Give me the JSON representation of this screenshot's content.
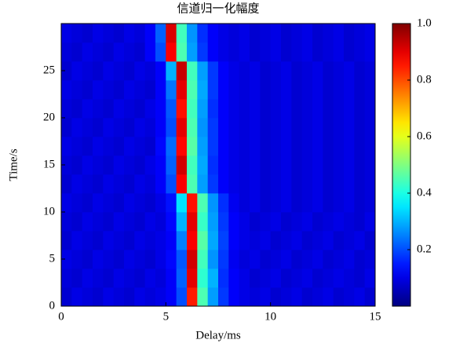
{
  "chart_data": {
    "type": "heatmap",
    "title": "信道归一化幅度",
    "xlabel": "Delay/ms",
    "ylabel": "Time/s",
    "xlim": [
      0,
      15
    ],
    "ylim": [
      0,
      30
    ],
    "xticks": [
      0,
      5,
      10,
      15
    ],
    "yticks": [
      0,
      5,
      10,
      15,
      20,
      25
    ],
    "clim": [
      0,
      1
    ],
    "cticks": [
      0.2,
      0.4,
      0.6,
      0.8,
      {
        "value": 1,
        "label": "1.0"
      }
    ],
    "colormap": "jet",
    "x": [
      0.25,
      0.75,
      1.25,
      1.75,
      2.25,
      2.75,
      3.25,
      3.75,
      4.25,
      4.75,
      5.25,
      5.75,
      6.25,
      6.75,
      7.25,
      7.75,
      8.25,
      8.75,
      9.25,
      9.75,
      10.25,
      10.75,
      11.25,
      11.75,
      12.25,
      12.75,
      13.25,
      13.75,
      14.25,
      14.75
    ],
    "y": [
      1,
      3,
      5,
      7,
      9,
      11,
      13,
      15,
      17,
      19,
      21,
      23,
      25,
      27,
      29
    ],
    "z": [
      [
        0.08,
        0.1,
        0.09,
        0.08,
        0.1,
        0.09,
        0.08,
        0.1,
        0.09,
        0.1,
        0.12,
        0.2,
        0.85,
        0.45,
        0.28,
        0.18,
        0.12,
        0.1,
        0.09,
        0.1,
        0.08,
        0.09,
        0.1,
        0.08,
        0.09,
        0.1,
        0.08,
        0.09,
        0.1,
        0.08
      ],
      [
        0.09,
        0.08,
        0.1,
        0.09,
        0.08,
        0.1,
        0.09,
        0.08,
        0.1,
        0.09,
        0.12,
        0.22,
        0.9,
        0.42,
        0.3,
        0.17,
        0.12,
        0.1,
        0.08,
        0.09,
        0.1,
        0.08,
        0.09,
        0.1,
        0.08,
        0.09,
        0.1,
        0.09,
        0.08,
        0.1
      ],
      [
        0.1,
        0.09,
        0.08,
        0.1,
        0.09,
        0.08,
        0.1,
        0.09,
        0.08,
        0.1,
        0.13,
        0.21,
        0.92,
        0.44,
        0.27,
        0.18,
        0.11,
        0.09,
        0.1,
        0.08,
        0.09,
        0.1,
        0.08,
        0.09,
        0.1,
        0.08,
        0.09,
        0.1,
        0.08,
        0.09
      ],
      [
        0.08,
        0.1,
        0.09,
        0.08,
        0.1,
        0.09,
        0.08,
        0.1,
        0.09,
        0.1,
        0.12,
        0.25,
        0.88,
        0.46,
        0.29,
        0.19,
        0.12,
        0.1,
        0.09,
        0.1,
        0.08,
        0.09,
        0.1,
        0.08,
        0.09,
        0.1,
        0.08,
        0.09,
        0.1,
        0.08
      ],
      [
        0.09,
        0.08,
        0.1,
        0.09,
        0.08,
        0.1,
        0.09,
        0.08,
        0.1,
        0.09,
        0.13,
        0.3,
        0.9,
        0.43,
        0.28,
        0.18,
        0.12,
        0.1,
        0.08,
        0.09,
        0.1,
        0.08,
        0.09,
        0.1,
        0.08,
        0.09,
        0.1,
        0.09,
        0.08,
        0.1
      ],
      [
        0.1,
        0.09,
        0.08,
        0.1,
        0.09,
        0.08,
        0.1,
        0.09,
        0.08,
        0.1,
        0.14,
        0.35,
        0.86,
        0.45,
        0.27,
        0.17,
        0.11,
        0.09,
        0.1,
        0.08,
        0.09,
        0.1,
        0.08,
        0.09,
        0.1,
        0.08,
        0.09,
        0.1,
        0.08,
        0.09
      ],
      [
        0.08,
        0.1,
        0.09,
        0.08,
        0.1,
        0.09,
        0.08,
        0.1,
        0.09,
        0.12,
        0.2,
        0.88,
        0.45,
        0.28,
        0.18,
        0.12,
        0.1,
        0.09,
        0.1,
        0.08,
        0.09,
        0.1,
        0.08,
        0.09,
        0.1,
        0.08,
        0.09,
        0.1,
        0.08,
        0.09
      ],
      [
        0.09,
        0.08,
        0.1,
        0.09,
        0.08,
        0.1,
        0.09,
        0.08,
        0.1,
        0.12,
        0.22,
        0.92,
        0.44,
        0.29,
        0.17,
        0.12,
        0.1,
        0.09,
        0.1,
        0.08,
        0.09,
        0.1,
        0.08,
        0.09,
        0.1,
        0.08,
        0.09,
        0.1,
        0.08,
        0.09
      ],
      [
        0.1,
        0.09,
        0.08,
        0.1,
        0.09,
        0.08,
        0.1,
        0.09,
        0.08,
        0.13,
        0.23,
        0.87,
        0.46,
        0.28,
        0.18,
        0.12,
        0.1,
        0.09,
        0.1,
        0.08,
        0.09,
        0.1,
        0.08,
        0.09,
        0.1,
        0.08,
        0.09,
        0.1,
        0.08,
        0.09
      ],
      [
        0.08,
        0.1,
        0.09,
        0.08,
        0.1,
        0.09,
        0.08,
        0.1,
        0.09,
        0.12,
        0.2,
        0.9,
        0.45,
        0.27,
        0.18,
        0.12,
        0.1,
        0.09,
        0.1,
        0.08,
        0.09,
        0.1,
        0.08,
        0.09,
        0.1,
        0.08,
        0.09,
        0.1,
        0.08,
        0.09
      ],
      [
        0.09,
        0.08,
        0.1,
        0.09,
        0.08,
        0.1,
        0.09,
        0.08,
        0.1,
        0.12,
        0.21,
        0.86,
        0.44,
        0.28,
        0.17,
        0.12,
        0.1,
        0.09,
        0.1,
        0.08,
        0.09,
        0.1,
        0.08,
        0.09,
        0.1,
        0.08,
        0.09,
        0.1,
        0.08,
        0.09
      ],
      [
        0.1,
        0.09,
        0.08,
        0.1,
        0.09,
        0.08,
        0.1,
        0.09,
        0.08,
        0.12,
        0.24,
        0.9,
        0.45,
        0.29,
        0.18,
        0.12,
        0.1,
        0.09,
        0.1,
        0.08,
        0.09,
        0.1,
        0.08,
        0.09,
        0.1,
        0.08,
        0.09,
        0.1,
        0.08,
        0.09
      ],
      [
        0.08,
        0.1,
        0.09,
        0.08,
        0.1,
        0.09,
        0.08,
        0.1,
        0.09,
        0.12,
        0.3,
        0.93,
        0.44,
        0.28,
        0.18,
        0.12,
        0.1,
        0.09,
        0.1,
        0.08,
        0.09,
        0.1,
        0.08,
        0.09,
        0.1,
        0.08,
        0.09,
        0.1,
        0.08,
        0.09
      ],
      [
        0.09,
        0.08,
        0.1,
        0.09,
        0.08,
        0.1,
        0.09,
        0.08,
        0.12,
        0.2,
        0.88,
        0.45,
        0.28,
        0.18,
        0.12,
        0.1,
        0.09,
        0.1,
        0.08,
        0.09,
        0.1,
        0.08,
        0.09,
        0.1,
        0.08,
        0.09,
        0.1,
        0.08,
        0.09,
        0.1
      ],
      [
        0.1,
        0.09,
        0.08,
        0.1,
        0.09,
        0.08,
        0.1,
        0.09,
        0.12,
        0.22,
        0.91,
        0.44,
        0.27,
        0.17,
        0.12,
        0.1,
        0.09,
        0.1,
        0.08,
        0.09,
        0.1,
        0.08,
        0.09,
        0.1,
        0.08,
        0.09,
        0.1,
        0.08,
        0.09,
        0.1
      ]
    ]
  }
}
